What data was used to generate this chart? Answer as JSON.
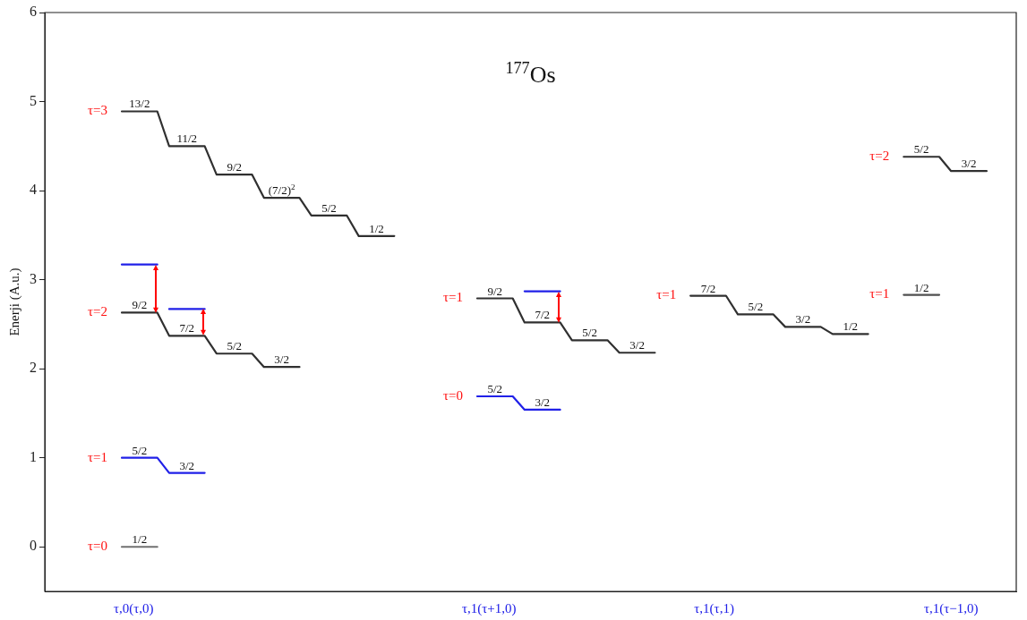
{
  "chart_data": {
    "type": "line",
    "marker": "none",
    "title": "$^{177}$Os",
    "ylabel": "Enerji (A.u.)",
    "categories": [
      null,
      null,
      null,
      null,
      null,
      null,
      null,
      "τ,0(τ,0)",
      null,
      null,
      null,
      null,
      null,
      null,
      null,
      null,
      null,
      null,
      null,
      null,
      null,
      null,
      null,
      null,
      null,
      null,
      null,
      null,
      null,
      null,
      null,
      null,
      null,
      null,
      null,
      null,
      null,
      "τ,1(τ+1,0)",
      null,
      null,
      null,
      null,
      null,
      null,
      null,
      null,
      null,
      null,
      null,
      null,
      null,
      null,
      null,
      null,
      null,
      null,
      "τ,1(τ,1)",
      null,
      null,
      null,
      null,
      null,
      null,
      null,
      null,
      null,
      null,
      null,
      null,
      null,
      null,
      null,
      null,
      null,
      null,
      null,
      "τ,1(τ−1,0)",
      null,
      null,
      null,
      null,
      null
    ],
    "ylim": [
      -0.5,
      6
    ],
    "yticks": [
      0,
      1,
      2,
      3,
      4,
      5,
      6
    ],
    "series": [
      {
        "name": "τ=3",
        "color": "#303030",
        "values": [
          null,
          null,
          null,
          null,
          null,
          null,
          4.89,
          4.89,
          4.89,
          4.89,
          4.5,
          4.5,
          4.5,
          4.5,
          4.18,
          4.18,
          4.18,
          4.18,
          3.92,
          3.92,
          3.92,
          3.92,
          3.72,
          3.72,
          3.72,
          3.72,
          3.49,
          3.49,
          3.49,
          3.49,
          null,
          null,
          null,
          null,
          null,
          null,
          null,
          null,
          null,
          null,
          null,
          null,
          null,
          null,
          null,
          null,
          null,
          null,
          null,
          null,
          null,
          null,
          null,
          null,
          null,
          null,
          null,
          null,
          null,
          null,
          null,
          null,
          null,
          null,
          null,
          null,
          null,
          null,
          null,
          null,
          null,
          null,
          null,
          null,
          null,
          null,
          null,
          null,
          null,
          null,
          null,
          null
        ]
      },
      {
        "name": "τ=2",
        "color": "#303030",
        "values": [
          null,
          null,
          null,
          null,
          null,
          null,
          2.63,
          2.63,
          2.63,
          2.63,
          2.37,
          2.37,
          2.37,
          2.37,
          2.17,
          2.17,
          2.17,
          2.17,
          2.02,
          2.02,
          2.02,
          2.02,
          null,
          null,
          null,
          null,
          null,
          null,
          null,
          null,
          null,
          null,
          null,
          null,
          null,
          null,
          null,
          null,
          null,
          null,
          null,
          null,
          null,
          null,
          null,
          null,
          null,
          null,
          null,
          null,
          null,
          null,
          null,
          null,
          null,
          null,
          null,
          null,
          null,
          null,
          null,
          null,
          null,
          null,
          null,
          null,
          null,
          null,
          null,
          null,
          null,
          null,
          null,
          null,
          null,
          null,
          null,
          null,
          null,
          null,
          null,
          null
        ]
      },
      {
        "color": "#2020e8",
        "values": [
          null,
          null,
          null,
          null,
          null,
          null,
          3.17,
          3.17,
          3.17,
          3.17,
          null,
          null,
          null,
          null,
          null,
          null,
          null,
          null,
          null,
          null,
          null,
          null,
          null,
          null,
          null,
          null,
          null,
          null,
          null,
          null,
          null,
          null,
          null,
          null,
          null,
          null,
          null,
          null,
          null,
          null,
          null,
          null,
          null,
          null,
          null,
          null,
          null,
          null,
          null,
          null,
          null,
          null,
          null,
          null,
          null,
          null,
          null,
          null,
          null,
          null,
          null,
          null,
          null,
          null,
          null,
          null,
          null,
          null,
          null,
          null,
          null,
          null,
          null,
          null,
          null,
          null,
          null,
          null,
          null,
          null,
          null,
          null
        ]
      },
      {
        "color": "#2020e8",
        "values": [
          null,
          null,
          null,
          null,
          null,
          null,
          null,
          null,
          null,
          null,
          2.67,
          2.67,
          2.67,
          2.67,
          null,
          null,
          null,
          null,
          null,
          null,
          null,
          null,
          null,
          null,
          null,
          null,
          null,
          null,
          null,
          null,
          null,
          null,
          null,
          null,
          null,
          null,
          null,
          null,
          null,
          null,
          null,
          null,
          null,
          null,
          null,
          null,
          null,
          null,
          null,
          null,
          null,
          null,
          null,
          null,
          null,
          null,
          null,
          null,
          null,
          null,
          null,
          null,
          null,
          null,
          null,
          null,
          null,
          null,
          null,
          null,
          null,
          null,
          null,
          null,
          null,
          null,
          null,
          null,
          null,
          null,
          null,
          null
        ]
      },
      {
        "color": "#2020e8",
        "values": [
          null,
          null,
          null,
          null,
          null,
          null,
          null,
          null,
          null,
          null,
          null,
          null,
          null,
          null,
          null,
          null,
          null,
          null,
          null,
          null,
          null,
          null,
          null,
          null,
          null,
          null,
          null,
          null,
          null,
          null,
          null,
          null,
          null,
          null,
          null,
          null,
          null,
          null,
          null,
          null,
          2.87,
          2.87,
          2.87,
          2.87,
          null,
          null,
          null,
          null,
          null,
          null,
          null,
          null,
          null,
          null,
          null,
          null,
          null,
          null,
          null,
          null,
          null,
          null,
          null,
          null,
          null,
          null,
          null,
          null,
          null,
          null,
          null,
          null,
          null,
          null,
          null,
          null,
          null,
          null,
          null,
          null,
          null,
          null
        ]
      },
      {
        "name": "τ=1",
        "color": "#2020e8",
        "values": [
          null,
          null,
          null,
          null,
          null,
          null,
          1.0,
          1.0,
          1.0,
          1.0,
          0.83,
          0.83,
          0.83,
          0.83,
          null,
          null,
          null,
          null,
          null,
          null,
          null,
          null,
          null,
          null,
          null,
          null,
          null,
          null,
          null,
          null,
          null,
          null,
          null,
          null,
          null,
          null,
          null,
          null,
          null,
          null,
          null,
          null,
          null,
          null,
          null,
          null,
          null,
          null,
          null,
          null,
          null,
          null,
          null,
          null,
          null,
          null,
          null,
          null,
          null,
          null,
          null,
          null,
          null,
          null,
          null,
          null,
          null,
          null,
          null,
          null,
          null,
          null,
          null,
          null,
          null,
          null,
          null,
          null,
          null,
          null,
          null,
          null
        ]
      },
      {
        "name": "τ=0",
        "color": "#707070",
        "values": [
          null,
          null,
          null,
          null,
          null,
          null,
          0,
          0,
          0,
          0,
          null,
          null,
          null,
          null,
          null,
          null,
          null,
          null,
          null,
          null,
          null,
          null,
          null,
          null,
          null,
          null,
          null,
          null,
          null,
          null,
          null,
          null,
          null,
          null,
          null,
          null,
          null,
          null,
          null,
          null,
          null,
          null,
          null,
          null,
          null,
          null,
          null,
          null,
          null,
          null,
          null,
          null,
          null,
          null,
          null,
          null,
          null,
          null,
          null,
          null,
          null,
          null,
          null,
          null,
          null,
          null,
          null,
          null,
          null,
          null,
          null,
          null,
          null,
          null,
          null,
          null,
          null,
          null,
          null,
          null,
          null,
          null
        ]
      },
      {
        "name": "τ=1",
        "color": "#303030",
        "values": [
          null,
          null,
          null,
          null,
          null,
          null,
          null,
          null,
          null,
          null,
          null,
          null,
          null,
          null,
          null,
          null,
          null,
          null,
          null,
          null,
          null,
          null,
          null,
          null,
          null,
          null,
          null,
          null,
          null,
          null,
          null,
          null,
          null,
          null,
          null,
          null,
          2.79,
          2.79,
          2.79,
          2.79,
          2.52,
          2.52,
          2.52,
          2.52,
          2.32,
          2.32,
          2.32,
          2.32,
          2.18,
          2.18,
          2.18,
          2.18,
          null,
          null,
          null,
          null,
          null,
          null,
          null,
          null,
          null,
          null,
          null,
          null,
          null,
          null,
          null,
          null,
          null,
          null,
          null,
          null,
          null,
          null,
          null,
          null,
          null,
          null,
          null,
          null,
          null,
          null
        ]
      },
      {
        "name": "τ=0",
        "color": "#2020e8",
        "values": [
          null,
          null,
          null,
          null,
          null,
          null,
          null,
          null,
          null,
          null,
          null,
          null,
          null,
          null,
          null,
          null,
          null,
          null,
          null,
          null,
          null,
          null,
          null,
          null,
          null,
          null,
          null,
          null,
          null,
          null,
          null,
          null,
          null,
          null,
          null,
          null,
          1.69,
          1.69,
          1.69,
          1.69,
          1.54,
          1.54,
          1.54,
          1.54,
          null,
          null,
          null,
          null,
          null,
          null,
          null,
          null,
          null,
          null,
          null,
          null,
          null,
          null,
          null,
          null,
          null,
          null,
          null,
          null,
          null,
          null,
          null,
          null,
          null,
          null,
          null,
          null,
          null,
          null,
          null,
          null,
          null,
          null,
          null,
          null,
          null,
          null
        ]
      },
      {
        "name": "τ=1",
        "color": "#303030",
        "values": [
          null,
          null,
          null,
          null,
          null,
          null,
          null,
          null,
          null,
          null,
          null,
          null,
          null,
          null,
          null,
          null,
          null,
          null,
          null,
          null,
          null,
          null,
          null,
          null,
          null,
          null,
          null,
          null,
          null,
          null,
          null,
          null,
          null,
          null,
          null,
          null,
          null,
          null,
          null,
          null,
          null,
          null,
          null,
          null,
          null,
          null,
          null,
          null,
          null,
          null,
          null,
          null,
          null,
          null,
          2.82,
          2.82,
          2.82,
          2.82,
          2.61,
          2.61,
          2.61,
          2.61,
          2.47,
          2.47,
          2.47,
          2.47,
          2.39,
          2.39,
          2.39,
          2.39,
          null,
          null,
          null,
          null,
          null,
          null,
          null,
          null,
          null,
          null,
          null,
          null
        ]
      },
      {
        "name": "τ=2",
        "color": "#303030",
        "values": [
          null,
          null,
          null,
          null,
          null,
          null,
          null,
          null,
          null,
          null,
          null,
          null,
          null,
          null,
          null,
          null,
          null,
          null,
          null,
          null,
          null,
          null,
          null,
          null,
          null,
          null,
          null,
          null,
          null,
          null,
          null,
          null,
          null,
          null,
          null,
          null,
          null,
          null,
          null,
          null,
          null,
          null,
          null,
          null,
          null,
          null,
          null,
          null,
          null,
          null,
          null,
          null,
          null,
          null,
          null,
          null,
          null,
          null,
          null,
          null,
          null,
          null,
          null,
          null,
          null,
          null,
          null,
          null,
          null,
          null,
          null,
          null,
          4.38,
          4.38,
          4.38,
          4.38,
          4.22,
          4.22,
          4.22,
          4.22,
          null,
          null
        ]
      },
      {
        "name": "τ=1",
        "color": "#505050",
        "values": [
          null,
          null,
          null,
          null,
          null,
          null,
          null,
          null,
          null,
          null,
          null,
          null,
          null,
          null,
          null,
          null,
          null,
          null,
          null,
          null,
          null,
          null,
          null,
          null,
          null,
          null,
          null,
          null,
          null,
          null,
          null,
          null,
          null,
          null,
          null,
          null,
          null,
          null,
          null,
          null,
          null,
          null,
          null,
          null,
          null,
          null,
          null,
          null,
          null,
          null,
          null,
          null,
          null,
          null,
          null,
          null,
          null,
          null,
          null,
          null,
          null,
          null,
          null,
          null,
          null,
          null,
          null,
          null,
          null,
          null,
          null,
          null,
          2.83,
          2.83,
          2.83,
          2.83,
          null,
          null,
          null,
          null,
          null,
          null
        ]
      }
    ],
    "annotations": [
      {
        "text": "13/2",
        "y": 4.89
      },
      {
        "text": "11/2",
        "y": 4.5
      },
      {
        "text": "9/2",
        "y": 4.18
      },
      {
        "text": "(7/2)$^{2}$",
        "y": 3.92
      },
      {
        "text": "5/2",
        "y": 3.72
      },
      {
        "text": "1/2",
        "y": 3.49
      },
      {
        "text": "9/2",
        "y": 2.63
      },
      {
        "text": "7/2",
        "y": 2.37
      },
      {
        "text": "5/2",
        "y": 2.17
      },
      {
        "text": "3/2",
        "y": 2.02
      },
      {
        "text": "5/2",
        "y": 1.0
      },
      {
        "text": "3/2",
        "y": 0.83
      },
      {
        "text": "1/2",
        "y": 0
      },
      {
        "text": "9/2",
        "y": 2.79
      },
      {
        "text": "7/2",
        "y": 2.52
      },
      {
        "text": "5/2",
        "y": 2.32
      },
      {
        "text": "3/2",
        "y": 2.18
      },
      {
        "text": "5/2",
        "y": 1.69
      },
      {
        "text": "3/2",
        "y": 1.54
      },
      {
        "text": "7/2",
        "y": 2.82
      },
      {
        "text": "5/2",
        "y": 2.61
      },
      {
        "text": "3/2",
        "y": 2.47
      },
      {
        "text": "1/2",
        "y": 2.39
      },
      {
        "text": "5/2",
        "y": 4.38
      },
      {
        "text": "3/2",
        "y": 4.22
      },
      {
        "text": "1/2",
        "y": 2.83
      }
    ]
  }
}
